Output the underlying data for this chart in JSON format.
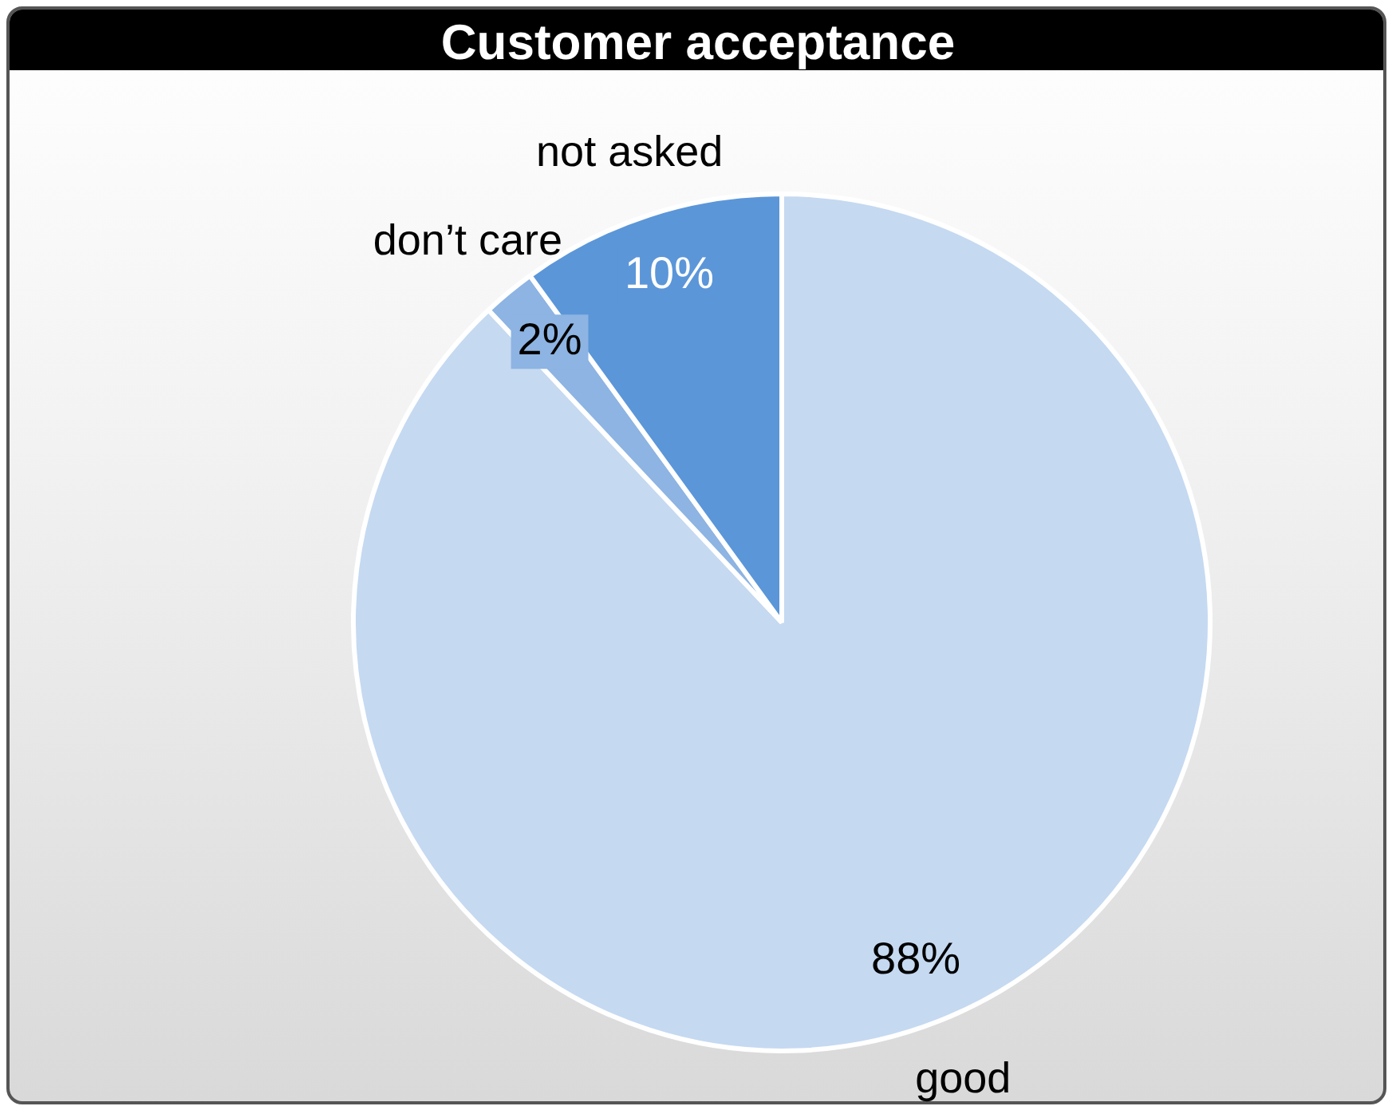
{
  "chart_data": {
    "type": "pie",
    "title": "Customer acceptance",
    "categories": [
      "good",
      "don’t care",
      "not asked"
    ],
    "values": [
      88,
      2,
      10
    ],
    "colors": [
      "#c5d9f1",
      "#8db4e2",
      "#5b96d8"
    ],
    "value_labels": [
      "88%",
      "2%",
      "10%"
    ],
    "legend": false
  }
}
